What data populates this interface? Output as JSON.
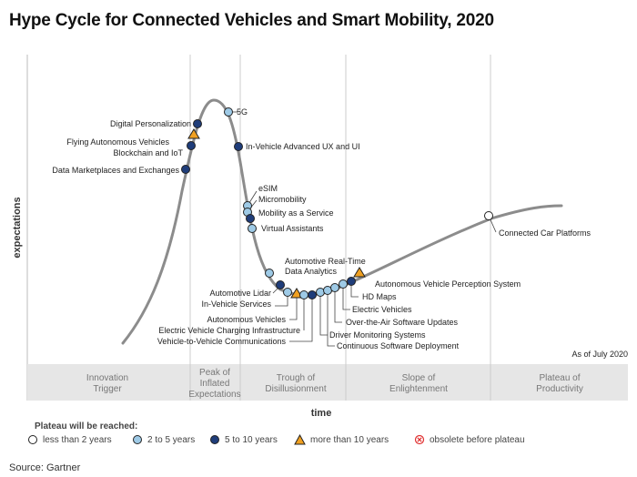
{
  "title": "Hype Cycle for Connected Vehicles and Smart Mobility, 2020",
  "y_axis_label": "expectations",
  "x_axis_label": "time",
  "as_of": "As of July 2020",
  "phases": [
    "Innovation Trigger",
    "Peak of Inflated Expectations",
    "Trough of Disillusionment",
    "Slope of Enlightenment",
    "Plateau of Productivity"
  ],
  "legend": {
    "title": "Plateau will be reached:",
    "items": [
      {
        "key": "lt2",
        "label": "less than 2 years"
      },
      {
        "key": "2to5",
        "label": "2 to 5 years"
      },
      {
        "key": "5to10",
        "label": "5 to 10 years"
      },
      {
        "key": "gt10",
        "label": "more than 10 years"
      },
      {
        "key": "obsolete",
        "label": "obsolete before plateau"
      }
    ]
  },
  "colors": {
    "lt2": "#ffffff",
    "2to5": "#9ecae6",
    "5to10": "#1f3d7a",
    "gt10": "#f0a020",
    "obsolete": "#e03030",
    "curve": "#888888",
    "phase_band": "#e6e6e6"
  },
  "technologies": [
    {
      "name": "Digital Personalization",
      "plateau": "5to10"
    },
    {
      "name": "Flying Autonomous Vehicles",
      "plateau": "gt10"
    },
    {
      "name": "Blockchain and IoT",
      "plateau": "5to10"
    },
    {
      "name": "Data Marketplaces and Exchanges",
      "plateau": "5to10"
    },
    {
      "name": "5G",
      "plateau": "2to5"
    },
    {
      "name": "In-Vehicle Advanced UX and UI",
      "plateau": "5to10"
    },
    {
      "name": "eSIM",
      "plateau": "2to5"
    },
    {
      "name": "Micromobility",
      "plateau": "2to5"
    },
    {
      "name": "Mobility as a Service",
      "plateau": "5to10"
    },
    {
      "name": "Virtual Assistants",
      "plateau": "2to5"
    },
    {
      "name": "Automotive Real-Time Data Analytics",
      "plateau": "2to5"
    },
    {
      "name": "Automotive Lidar",
      "plateau": "5to10"
    },
    {
      "name": "In-Vehicle Services",
      "plateau": "2to5"
    },
    {
      "name": "Autonomous Vehicles",
      "plateau": "gt10"
    },
    {
      "name": "Electric Vehicle Charging Infrastructure",
      "plateau": "2to5"
    },
    {
      "name": "Vehicle-to-Vehicle Communications",
      "plateau": "5to10"
    },
    {
      "name": "Driver Monitoring Systems",
      "plateau": "2to5"
    },
    {
      "name": "Continuous Software Deployment",
      "plateau": "2to5"
    },
    {
      "name": "Over-the-Air Software Updates",
      "plateau": "2to5"
    },
    {
      "name": "Electric Vehicles",
      "plateau": "2to5"
    },
    {
      "name": "HD Maps",
      "plateau": "5to10"
    },
    {
      "name": "Autonomous Vehicle Perception System",
      "plateau": "gt10"
    },
    {
      "name": "Connected Car Platforms",
      "plateau": "lt2"
    }
  ],
  "source": "Source: Gartner"
}
